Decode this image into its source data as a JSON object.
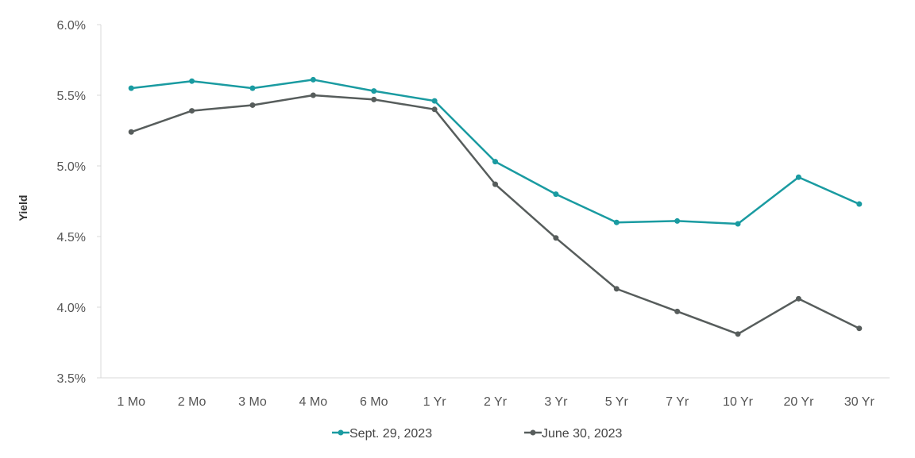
{
  "chart_data": {
    "type": "line",
    "title": "",
    "xlabel": "",
    "ylabel": "Yield",
    "categories": [
      "1 Mo",
      "2 Mo",
      "3 Mo",
      "4 Mo",
      "6 Mo",
      "1 Yr",
      "2 Yr",
      "3 Yr",
      "5 Yr",
      "7 Yr",
      "10 Yr",
      "20 Yr",
      "30 Yr"
    ],
    "ylim": [
      3.5,
      6.0
    ],
    "yticks": [
      3.5,
      4.0,
      4.5,
      5.0,
      5.5,
      6.0
    ],
    "ytick_labels": [
      "3.5%",
      "4.0%",
      "4.5%",
      "5.0%",
      "5.5%",
      "6.0%"
    ],
    "grid": false,
    "legend_position": "bottom",
    "series": [
      {
        "name": "Sept. 29, 2023",
        "color": "#1a9ba1",
        "values": [
          5.55,
          5.6,
          5.55,
          5.61,
          5.53,
          5.46,
          5.03,
          4.8,
          4.6,
          4.61,
          4.59,
          4.92,
          4.73
        ]
      },
      {
        "name": "June 30, 2023",
        "color": "#575d5c",
        "values": [
          5.24,
          5.39,
          5.43,
          5.5,
          5.47,
          5.4,
          4.87,
          4.49,
          4.13,
          3.97,
          3.81,
          4.06,
          3.85
        ]
      }
    ]
  }
}
